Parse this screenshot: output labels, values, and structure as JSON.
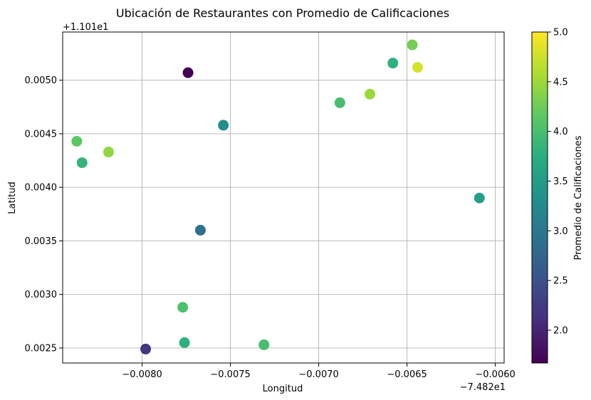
{
  "chart_data": {
    "type": "scatter",
    "title": "Ubicación de Restaurantes con Promedio de Calificaciones",
    "xlabel": "Longitud",
    "ylabel": "Latitud",
    "x_offset_label": "−7.482e1",
    "y_offset_label": "+1.101e1",
    "xlim": [
      -0.00845,
      -0.00595
    ],
    "ylim": [
      0.00236,
      0.00545
    ],
    "x_ticks": [
      -0.008,
      -0.0075,
      -0.007,
      -0.0065,
      -0.006
    ],
    "x_tick_labels": [
      "−0.0080",
      "−0.0075",
      "−0.0070",
      "−0.0065",
      "−0.0060"
    ],
    "y_ticks": [
      0.0025,
      0.003,
      0.0035,
      0.004,
      0.0045,
      0.005
    ],
    "y_tick_labels": [
      "0.0025",
      "0.0030",
      "0.0035",
      "0.0040",
      "0.0045",
      "0.0050"
    ],
    "grid": true,
    "colorbar": {
      "label": "Promedio de Calificaciones",
      "colormap": "viridis",
      "range": [
        1.67,
        5.0
      ],
      "ticks": [
        2.0,
        2.5,
        3.0,
        3.5,
        4.0,
        4.5,
        5.0
      ],
      "tick_labels": [
        "2.0",
        "2.5",
        "3.0",
        "3.5",
        "4.0",
        "4.5",
        "5.0"
      ]
    },
    "points": [
      {
        "x": -0.00837,
        "y": 0.00443,
        "rating": 4.15
      },
      {
        "x": -0.00834,
        "y": 0.00423,
        "rating": 3.85
      },
      {
        "x": -0.00819,
        "y": 0.00433,
        "rating": 4.45
      },
      {
        "x": -0.00798,
        "y": 0.00249,
        "rating": 2.2
      },
      {
        "x": -0.00777,
        "y": 0.00288,
        "rating": 4.05
      },
      {
        "x": -0.00776,
        "y": 0.00255,
        "rating": 3.8
      },
      {
        "x": -0.00774,
        "y": 0.00507,
        "rating": 1.67
      },
      {
        "x": -0.00767,
        "y": 0.0036,
        "rating": 2.9
      },
      {
        "x": -0.00754,
        "y": 0.00458,
        "rating": 3.3
      },
      {
        "x": -0.00731,
        "y": 0.00253,
        "rating": 4.0
      },
      {
        "x": -0.00688,
        "y": 0.00479,
        "rating": 4.0
      },
      {
        "x": -0.00671,
        "y": 0.00487,
        "rating": 4.5
      },
      {
        "x": -0.00658,
        "y": 0.00516,
        "rating": 3.8
      },
      {
        "x": -0.00647,
        "y": 0.00533,
        "rating": 4.3
      },
      {
        "x": -0.00644,
        "y": 0.00512,
        "rating": 4.8
      },
      {
        "x": -0.00609,
        "y": 0.0039,
        "rating": 3.55
      }
    ]
  }
}
